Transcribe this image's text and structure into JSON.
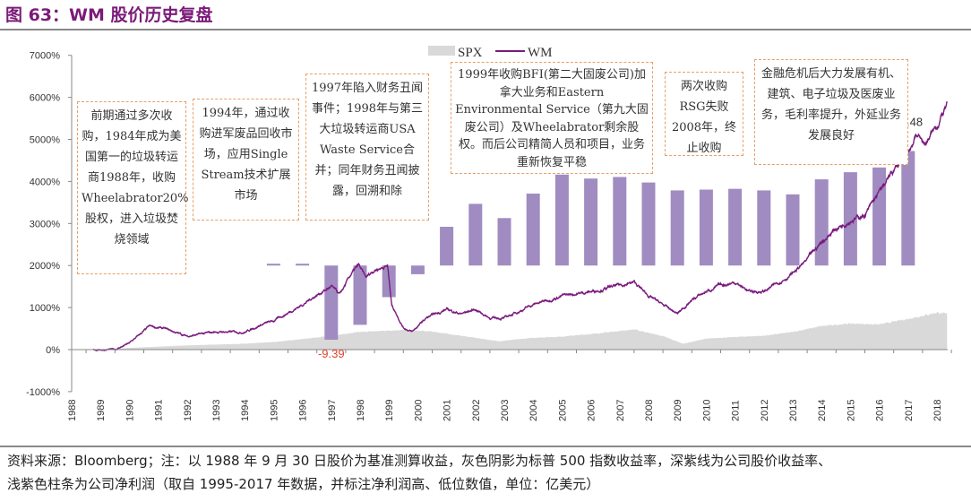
{
  "title": "图 63：WM 股价历史复盘",
  "footnote": {
    "line1": "资料来源：Bloomberg；注：以 1988 年 9 月 30 日股价为基准测算收益，灰色阴影为标普 500 指数收益率，深紫线为公司股价收益率、",
    "line2": "浅紫色柱条为公司净利润（取自 1995-2017 年数据，并标注净利润高、低位数值，单位：亿美元）"
  },
  "annotations": [
    "前期通过多次收购，1984年成为美国第一的垃圾转运商1988年，收购Wheelabrator20%股权，进入垃圾焚烧领域",
    "1994年，通过收购进军废品回收市场，应用Single Stream技术扩展市场",
    "1997年陷入财务丑闻事件；1998年与第三大垃圾转运商USA Waste Service合并；同年财务丑闻披露，回溯和除",
    "1999年收购BFI(第二大固废公司)加拿大业务和Eastern Environmental Service（第九大固废公司）及Wheelabrator剩余股权。而后公司精简人员和项目，业务重新恢复平稳",
    "两次收购RSG失败2008年，终止收购",
    "金融危机后大力发展有机、建筑、电子垃圾及医废业务，毛利率提升，外延业务发展良好"
  ],
  "chart_data": {
    "type": "line+bar+area",
    "ylim": [
      -1000,
      7000
    ],
    "ytick_labels": [
      "-1000%",
      "0%",
      "1000%",
      "2000%",
      "3000%",
      "4000%",
      "5000%",
      "6000%",
      "7000%"
    ],
    "yticks": [
      -1000,
      0,
      1000,
      2000,
      3000,
      4000,
      5000,
      6000,
      7000
    ],
    "xtick_labels": [
      "1988",
      "1989",
      "1990",
      "1991",
      "1992",
      "1993",
      "1994",
      "1995",
      "1996",
      "1997",
      "1998",
      "1999",
      "2000",
      "2001",
      "2002",
      "2003",
      "2004",
      "2005",
      "2006",
      "2007",
      "2008",
      "2009",
      "2010",
      "2011",
      "2012",
      "2013",
      "2014",
      "2015",
      "2016",
      "2017",
      "2018"
    ],
    "legend": [
      "SPX",
      "WM"
    ],
    "legend_position": "top",
    "colors": {
      "spx": "#d9d9d9",
      "wm": "#7a1a7e",
      "bars": "#a08cc0",
      "label": "#e0442a"
    },
    "bar_baseline_pct": 2000,
    "bars": {
      "unit": "亿美元",
      "years": [
        1995,
        1996,
        1997,
        1998,
        1999,
        2000,
        2001,
        2002,
        2003,
        2004,
        2005,
        2006,
        2007,
        2008,
        2009,
        2010,
        2011,
        2012,
        2013,
        2014,
        2015,
        2016,
        2017
      ],
      "values": [
        0.1,
        0.1,
        -9.39,
        -7.5,
        -4.0,
        -1.1,
        4.9,
        7.8,
        6.0,
        9.1,
        11.5,
        11.0,
        11.2,
        10.5,
        9.5,
        9.6,
        9.7,
        9.5,
        9.0,
        10.9,
        11.8,
        12.4,
        14.48
      ]
    },
    "data_labels": [
      {
        "year": 1997,
        "text": "-9.39"
      },
      {
        "year": 2017,
        "text": "14.48"
      }
    ],
    "series": [
      {
        "name": "WM",
        "x": [
          1988.75,
          1989.5,
          1990.0,
          1990.7,
          1991.2,
          1992.0,
          1993.0,
          1994.0,
          1994.6,
          1995.0,
          1996.0,
          1996.5,
          1997.0,
          1997.3,
          1997.7,
          1997.95,
          1998.2,
          1998.5,
          1998.95,
          1999.1,
          1999.5,
          1999.8,
          2000.3,
          2001.0,
          2001.5,
          2002.0,
          2002.5,
          2003.0,
          2004.0,
          2005.0,
          2006.0,
          2007.0,
          2007.5,
          2008.0,
          2009.0,
          2009.5,
          2010.0,
          2010.5,
          2011.0,
          2011.5,
          2012.0,
          2013.0,
          2013.5,
          2014.0,
          2014.5,
          2015.0,
          2015.5,
          2016.0,
          2016.5,
          2017.0,
          2017.3,
          2017.6,
          2018.0,
          2018.35
        ],
        "y": [
          0,
          0,
          150,
          550,
          500,
          320,
          420,
          420,
          600,
          680,
          1070,
          1300,
          1500,
          1300,
          1800,
          2000,
          1700,
          1900,
          2000,
          1070,
          530,
          420,
          750,
          960,
          850,
          960,
          750,
          750,
          1070,
          1280,
          1380,
          1530,
          1600,
          1280,
          850,
          1180,
          1380,
          1530,
          1600,
          1380,
          1380,
          1810,
          2130,
          2560,
          2880,
          3090,
          3200,
          3730,
          4260,
          4690,
          5120,
          4900,
          5330,
          5800
        ]
      },
      {
        "name": "SPX",
        "x": [
          1988.75,
          1990,
          1992,
          1994,
          1995,
          1996,
          1997,
          1998,
          1999.5,
          2000.5,
          2001.5,
          2002.8,
          2004,
          2005,
          2006,
          2007.5,
          2008.5,
          2009.2,
          2010,
          2011,
          2012,
          2013,
          2014,
          2015,
          2016,
          2017,
          2018,
          2018.35
        ],
        "y": [
          0,
          40,
          100,
          140,
          180,
          250,
          330,
          420,
          470,
          430,
          330,
          200,
          280,
          310,
          370,
          480,
          320,
          140,
          260,
          300,
          330,
          420,
          560,
          620,
          600,
          730,
          880,
          850
        ]
      }
    ]
  }
}
